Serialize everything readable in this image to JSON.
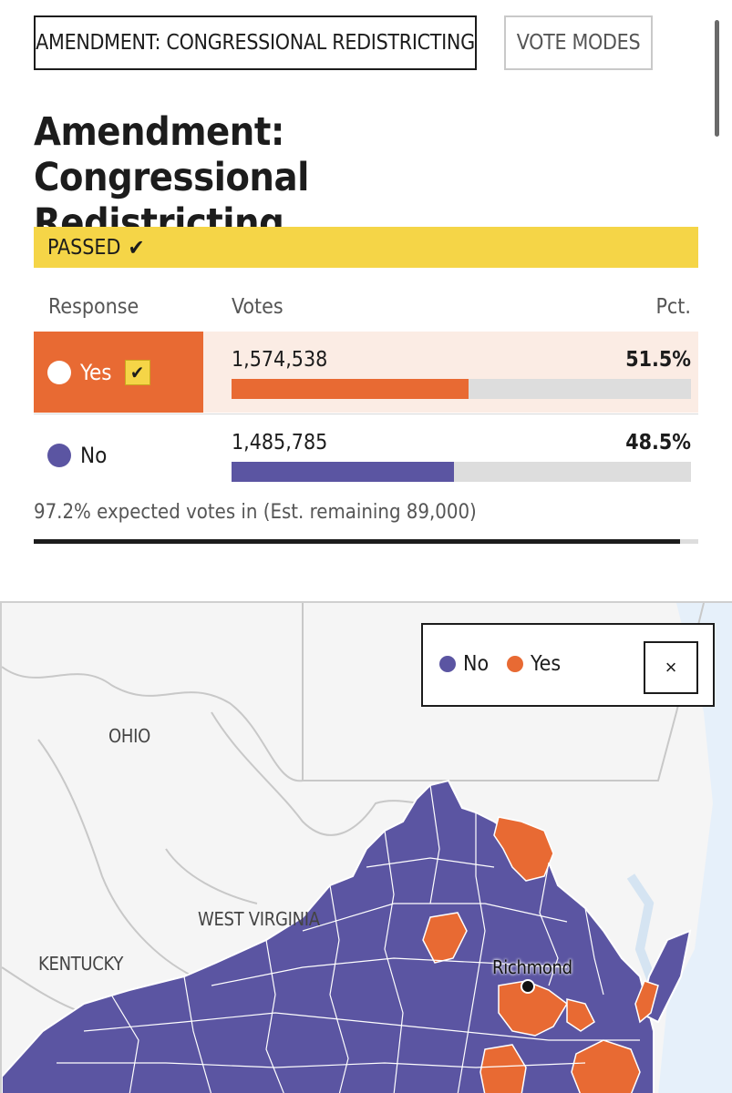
{
  "tabs": [
    {
      "label": "AMENDMENT: CONGRESSIONAL REDISTRICTING",
      "active": true
    },
    {
      "label": "VOTE MODES",
      "active": false
    }
  ],
  "race": {
    "title": "Amendment: Congressional Redistricting",
    "status": "PASSED"
  },
  "table": {
    "headers": {
      "response": "Response",
      "votes": "Votes",
      "pct": "Pct."
    },
    "rows": [
      {
        "response": "Yes",
        "votes": "1,574,538",
        "pct": "51.5%",
        "share": 51.5,
        "color": "#e86a33",
        "winner": true
      },
      {
        "response": "No",
        "votes": "1,485,785",
        "pct": "48.5%",
        "share": 48.5,
        "color": "#5b55a2",
        "winner": false
      }
    ]
  },
  "reporting": {
    "text": "97.2% expected votes in (Est. remaining 89,000)",
    "fraction": 0.972
  },
  "map": {
    "labels": {
      "ohio": "OHIO",
      "west_virginia": "WEST VIRGINIA",
      "kentucky": "KENTUCKY",
      "richmond": "Richmond"
    },
    "legend": [
      {
        "label": "No",
        "color": "#5b55a2"
      },
      {
        "label": "Yes",
        "color": "#e86a33"
      }
    ],
    "close_label": "×"
  },
  "colors": {
    "yes": "#e86a33",
    "no": "#5b55a2",
    "passed": "#f5d547"
  },
  "icons": {
    "checkmark": "check-icon",
    "close": "close-icon"
  }
}
